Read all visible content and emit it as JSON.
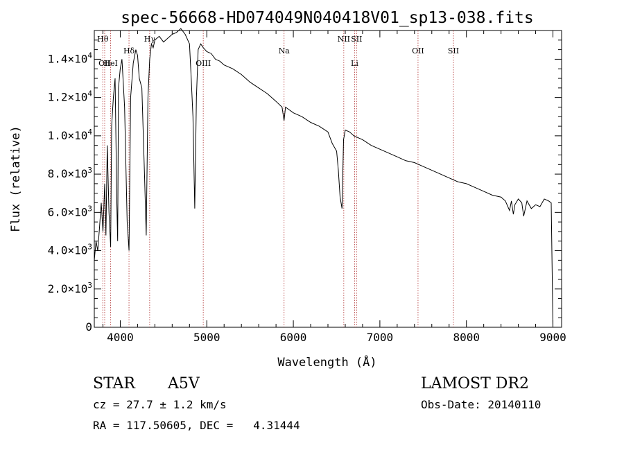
{
  "chart_data": {
    "type": "line",
    "title": "spec-56668-HD074049N040418V01_sp13-038.fits",
    "xlabel": "Wavelength (Å)",
    "ylabel": "Flux (relative)",
    "xlim": [
      3700,
      9100
    ],
    "ylim": [
      0,
      15500
    ],
    "x_ticks": [
      4000,
      5000,
      6000,
      7000,
      8000,
      9000
    ],
    "y_ticks": [
      {
        "value": 0,
        "mantissa": "0",
        "exp": ""
      },
      {
        "value": 2000,
        "mantissa": "2.0×10",
        "exp": "3"
      },
      {
        "value": 4000,
        "mantissa": "4.0×10",
        "exp": "3"
      },
      {
        "value": 6000,
        "mantissa": "6.0×10",
        "exp": "3"
      },
      {
        "value": 8000,
        "mantissa": "8.0×10",
        "exp": "3"
      },
      {
        "value": 10000,
        "mantissa": "1.0×10",
        "exp": "4"
      },
      {
        "value": 12000,
        "mantissa": "1.2×10",
        "exp": "4"
      },
      {
        "value": 14000,
        "mantissa": "1.4×10",
        "exp": "4"
      }
    ],
    "series": [
      {
        "x": [
          3700,
          3720,
          3740,
          3760,
          3780,
          3800,
          3820,
          3835,
          3850,
          3870,
          3889,
          3900,
          3920,
          3940,
          3960,
          3970,
          3980,
          4000,
          4020,
          4050,
          4080,
          4101,
          4120,
          4150,
          4180,
          4200,
          4220,
          4250,
          4280,
          4300,
          4320,
          4340,
          4360,
          4380,
          4400,
          4450,
          4500,
          4550,
          4600,
          4650,
          4700,
          4750,
          4800,
          4820,
          4840,
          4861,
          4880,
          4900,
          4930,
          4960,
          5000,
          5050,
          5100,
          5150,
          5200,
          5300,
          5400,
          5500,
          5600,
          5700,
          5800,
          5870,
          5893,
          5910,
          6000,
          6100,
          6200,
          6300,
          6400,
          6450,
          6500,
          6520,
          6540,
          6563,
          6580,
          6600,
          6650,
          6700,
          6800,
          6900,
          7000,
          7100,
          7200,
          7300,
          7400,
          7500,
          7600,
          7700,
          7800,
          7900,
          8000,
          8100,
          8200,
          8300,
          8400,
          8450,
          8498,
          8520,
          8542,
          8560,
          8600,
          8640,
          8662,
          8700,
          8750,
          8800,
          8850,
          8900,
          8950,
          8980,
          9000
        ],
        "values": [
          3500,
          4500,
          4000,
          5200,
          6500,
          5000,
          7500,
          4800,
          9500,
          6000,
          4200,
          10500,
          12000,
          13000,
          6500,
          4500,
          12500,
          13500,
          14000,
          11500,
          5500,
          4000,
          12000,
          13800,
          14500,
          14200,
          13000,
          12500,
          8000,
          4800,
          12000,
          14000,
          14800,
          14600,
          15000,
          15200,
          14900,
          15100,
          15300,
          15400,
          15600,
          15300,
          14800,
          13000,
          11000,
          6200,
          12000,
          14500,
          14800,
          14600,
          14400,
          14300,
          14000,
          13900,
          13700,
          13500,
          13200,
          12800,
          12500,
          12200,
          11800,
          11500,
          10800,
          11500,
          11200,
          11000,
          10700,
          10500,
          10200,
          9600,
          9200,
          8200,
          6800,
          6200,
          9800,
          10300,
          10200,
          10000,
          9800,
          9500,
          9300,
          9100,
          8900,
          8700,
          8600,
          8400,
          8200,
          8000,
          7800,
          7600,
          7500,
          7300,
          7100,
          6900,
          6800,
          6600,
          6100,
          6600,
          5900,
          6400,
          6700,
          6500,
          5800,
          6600,
          6200,
          6400,
          6300,
          6700,
          6600,
          6500,
          0
        ]
      }
    ],
    "lines": [
      {
        "wave": 3798,
        "label": "Hθ",
        "row": 1
      },
      {
        "wave": 3820,
        "label": "OII",
        "row": 3
      },
      {
        "wave": 3889,
        "label": "HeI",
        "row": 3
      },
      {
        "wave": 4101,
        "label": "Hδ",
        "row": 2
      },
      {
        "wave": 4340,
        "label": "Hγ",
        "row": 1
      },
      {
        "wave": 4959,
        "label": "OIII",
        "row": 3
      },
      {
        "wave": 5893,
        "label": "Na",
        "row": 2
      },
      {
        "wave": 6583,
        "label": "NII",
        "row": 1
      },
      {
        "wave": 6708,
        "label": "Li",
        "row": 3
      },
      {
        "wave": 6731,
        "label": "SII",
        "row": 1
      },
      {
        "wave": 7441,
        "label": "OII",
        "row": 2
      },
      {
        "wave": 7850,
        "label": "SII",
        "row": 2
      }
    ],
    "grid": false
  },
  "info": {
    "class_label": "STAR",
    "subclass": "A5V",
    "survey": "LAMOST DR2",
    "cz": "cz = 27.7 ± 1.2 km/s",
    "obs_date": "Obs-Date: 20140110",
    "radec": "RA = 117.50605, DEC =   4.31444"
  }
}
